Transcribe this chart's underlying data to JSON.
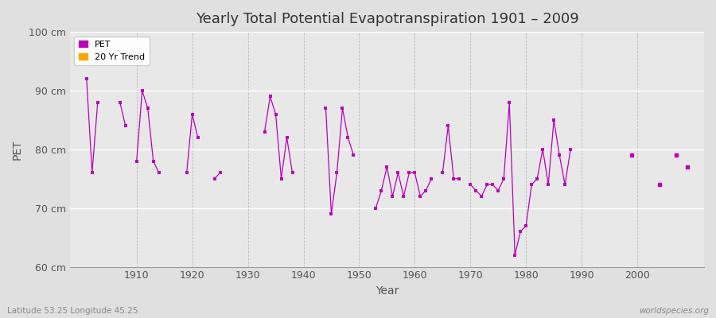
{
  "title": "Yearly Total Potential Evapotranspiration 1901 – 2009",
  "xlabel": "Year",
  "ylabel": "PET",
  "ylim": [
    60,
    100
  ],
  "yticks": [
    60,
    70,
    80,
    90,
    100
  ],
  "ytick_labels": [
    "60 cm",
    "70 cm",
    "80 cm",
    "90 cm",
    "100 cm"
  ],
  "background_color": "#e0e0e0",
  "plot_bg_color": "#e8e8e8",
  "line_color": "#bb00bb",
  "marker_color": "#bb00bb",
  "trend_color": "#ffa500",
  "footer_left": "Latitude 53.25 Longitude 45.25",
  "footer_right": "worldspecies.org",
  "xlim": [
    1898,
    2012
  ],
  "xticks": [
    1910,
    1920,
    1930,
    1940,
    1950,
    1960,
    1970,
    1980,
    1990,
    2000
  ],
  "segments": [
    {
      "years": [
        1901,
        1902,
        1903
      ],
      "values": [
        92,
        76,
        88
      ]
    },
    {
      "years": [
        1907,
        1908
      ],
      "values": [
        88,
        84
      ]
    },
    {
      "years": [
        1910,
        1911,
        1912,
        1913,
        1914
      ],
      "values": [
        78,
        90,
        87,
        78,
        76
      ]
    },
    {
      "years": [
        1919,
        1920,
        1921
      ],
      "values": [
        76,
        86,
        82
      ]
    },
    {
      "years": [
        1924,
        1925
      ],
      "values": [
        75,
        76
      ]
    },
    {
      "years": [
        1933,
        1934,
        1935,
        1936,
        1937,
        1938
      ],
      "values": [
        83,
        89,
        86,
        75,
        82,
        76
      ]
    },
    {
      "years": [
        1944,
        1945,
        1946,
        1947,
        1948,
        1949
      ],
      "values": [
        87,
        69,
        76,
        87,
        82,
        79
      ]
    },
    {
      "years": [
        1953,
        1954,
        1955,
        1956,
        1957,
        1958,
        1959,
        1960,
        1961,
        1962,
        1963
      ],
      "values": [
        70,
        73,
        77,
        72,
        76,
        72,
        76,
        76,
        72,
        73,
        75
      ]
    },
    {
      "years": [
        1965,
        1966,
        1967,
        1968
      ],
      "values": [
        76,
        84,
        75,
        75
      ]
    },
    {
      "years": [
        1970,
        1971,
        1972,
        1973,
        1974,
        1975,
        1976,
        1977,
        1978,
        1979,
        1980,
        1981,
        1982,
        1983,
        1984,
        1985,
        1986,
        1987,
        1988
      ],
      "values": [
        74,
        73,
        72,
        74,
        74,
        73,
        75,
        88,
        62,
        66,
        67,
        74,
        75,
        80,
        74,
        85,
        79,
        74,
        80
      ]
    },
    {
      "years": [
        1999
      ],
      "values": [
        79
      ]
    },
    {
      "years": [
        2004
      ],
      "values": [
        74
      ]
    },
    {
      "years": [
        2007
      ],
      "values": [
        79
      ]
    },
    {
      "years": [
        2009
      ],
      "values": [
        77
      ]
    }
  ]
}
